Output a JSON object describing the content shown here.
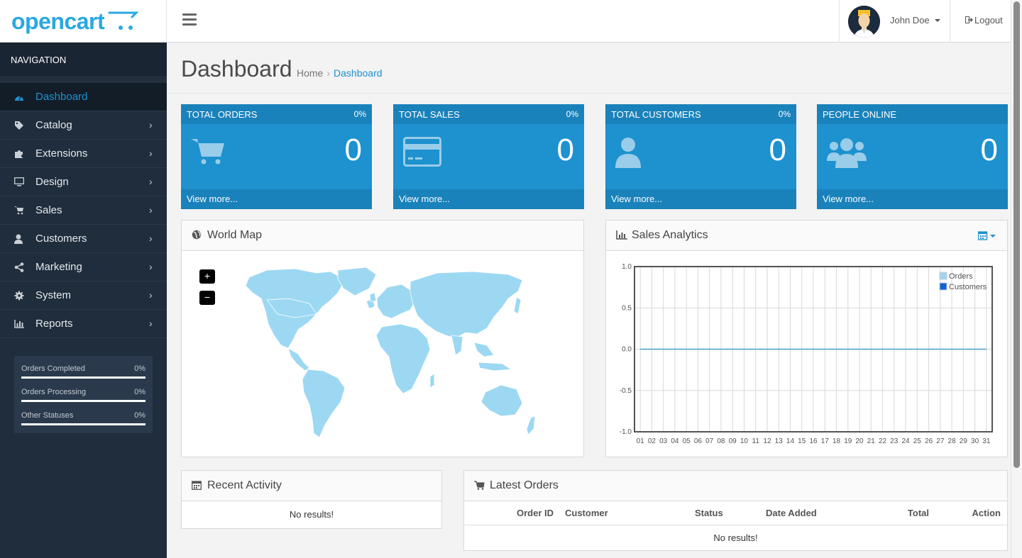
{
  "header": {
    "logo_text": "opencart",
    "user_name": "John Doe",
    "logout_label": "Logout"
  },
  "sidebar": {
    "nav_title": "NAVIGATION",
    "items": [
      {
        "label": "Dashboard",
        "icon": "dashboard-icon",
        "active": true
      },
      {
        "label": "Catalog",
        "icon": "tags-icon"
      },
      {
        "label": "Extensions",
        "icon": "puzzle-icon"
      },
      {
        "label": "Design",
        "icon": "monitor-icon"
      },
      {
        "label": "Sales",
        "icon": "shopping-cart-icon"
      },
      {
        "label": "Customers",
        "icon": "user-icon"
      },
      {
        "label": "Marketing",
        "icon": "share-icon"
      },
      {
        "label": "System",
        "icon": "gear-icon"
      },
      {
        "label": "Reports",
        "icon": "bar-chart-icon"
      }
    ],
    "stats": [
      {
        "label": "Orders Completed",
        "value": "0%",
        "progress": 0
      },
      {
        "label": "Orders Processing",
        "value": "0%",
        "progress": 0
      },
      {
        "label": "Other Statuses",
        "value": "0%",
        "progress": 0
      }
    ]
  },
  "page": {
    "title": "Dashboard",
    "breadcrumb": [
      "Home",
      "Dashboard"
    ]
  },
  "tiles": [
    {
      "title": "TOTAL ORDERS",
      "percent": "0%",
      "value": "0",
      "link": "View more...",
      "icon": "shopping-cart-icon"
    },
    {
      "title": "TOTAL SALES",
      "percent": "0%",
      "value": "0",
      "link": "View more...",
      "icon": "credit-card-icon"
    },
    {
      "title": "TOTAL CUSTOMERS",
      "percent": "0%",
      "value": "0",
      "link": "View more...",
      "icon": "user-icon"
    },
    {
      "title": "PEOPLE ONLINE",
      "percent": "",
      "value": "0",
      "link": "View more...",
      "icon": "users-icon"
    }
  ],
  "world_map": {
    "title": "World Map",
    "zoom_in": "+",
    "zoom_out": "−"
  },
  "sales_analytics": {
    "title": "Sales Analytics"
  },
  "chart_data": {
    "type": "line",
    "title": "",
    "xlabel": "",
    "ylabel": "",
    "x": [
      "01",
      "02",
      "03",
      "04",
      "05",
      "06",
      "07",
      "08",
      "09",
      "10",
      "11",
      "12",
      "13",
      "14",
      "15",
      "16",
      "17",
      "18",
      "19",
      "20",
      "21",
      "22",
      "23",
      "24",
      "25",
      "26",
      "27",
      "28",
      "29",
      "30",
      "31"
    ],
    "ylim": [
      -1.0,
      1.0
    ],
    "yticks": [
      "1.0",
      "0.5",
      "0.0",
      "-0.5",
      "-1.0"
    ],
    "grid": true,
    "legend_position": "top-right",
    "series": [
      {
        "name": "Orders",
        "color": "#9fd5f1",
        "values": [
          0,
          0,
          0,
          0,
          0,
          0,
          0,
          0,
          0,
          0,
          0,
          0,
          0,
          0,
          0,
          0,
          0,
          0,
          0,
          0,
          0,
          0,
          0,
          0,
          0,
          0,
          0,
          0,
          0,
          0,
          0
        ]
      },
      {
        "name": "Customers",
        "color": "#1065d2",
        "values": [
          0,
          0,
          0,
          0,
          0,
          0,
          0,
          0,
          0,
          0,
          0,
          0,
          0,
          0,
          0,
          0,
          0,
          0,
          0,
          0,
          0,
          0,
          0,
          0,
          0,
          0,
          0,
          0,
          0,
          0,
          0
        ]
      }
    ]
  },
  "recent_activity": {
    "title": "Recent Activity",
    "empty": "No results!"
  },
  "latest_orders": {
    "title": "Latest Orders",
    "columns": [
      "Order ID",
      "Customer",
      "Status",
      "Date Added",
      "Total",
      "Action"
    ],
    "empty": "No results!"
  },
  "colors": {
    "accent": "#1e91cf",
    "sidebar_bg": "#1f2d3d",
    "map_land": "#9dd8f3"
  }
}
